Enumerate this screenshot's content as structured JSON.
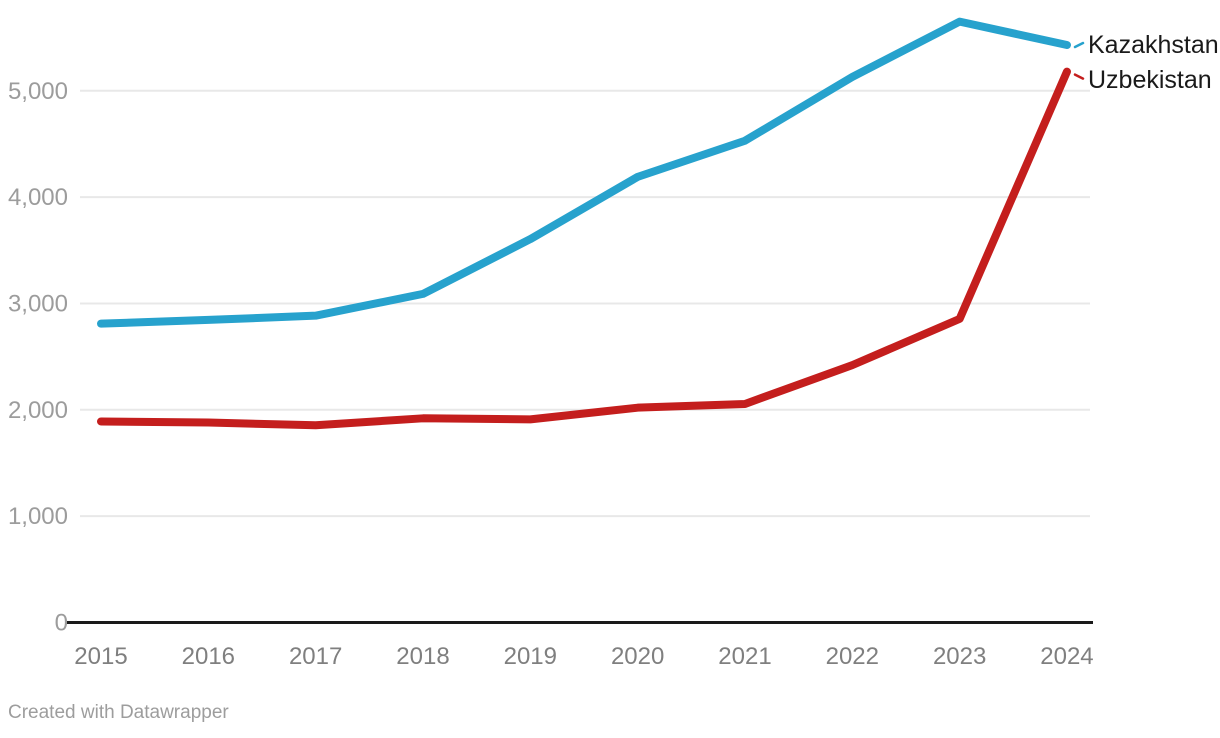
{
  "chart_data": {
    "type": "line",
    "x": [
      "2015",
      "2016",
      "2017",
      "2018",
      "2019",
      "2020",
      "2021",
      "2022",
      "2023",
      "2024"
    ],
    "series": [
      {
        "name": "Kazakhstan",
        "color": "#27a2cd",
        "values": [
          2810,
          2845,
          2885,
          3090,
          3605,
          4190,
          4530,
          5130,
          5650,
          5430
        ]
      },
      {
        "name": "Uzbekistan",
        "color": "#c41e1d",
        "values": [
          1890,
          1880,
          1855,
          1920,
          1910,
          2020,
          2055,
          2420,
          2855,
          5180
        ]
      }
    ],
    "title": "",
    "xlabel": "",
    "ylabel": "",
    "ylim": [
      0,
      5700
    ],
    "yticks": [
      0,
      1000,
      2000,
      3000,
      4000,
      5000
    ],
    "ytick_labels": [
      "0",
      "1,000",
      "2,000",
      "3,000",
      "4,000",
      "5,000"
    ],
    "grid": "horizontal",
    "legend_position": "direct-labels-right"
  },
  "legend": {
    "kazakhstan_label": "Kazakhstan",
    "uzbekistan_label": "Uzbekistan"
  },
  "footer": {
    "credit": "Created with Datawrapper"
  },
  "colors": {
    "series_blue": "#27a2cd",
    "series_red": "#c41e1d",
    "axis_line": "#1a1a1a",
    "gridline": "#e8e8e8",
    "ytick_text": "#9c9c9c",
    "xtick_text": "#7f7f7f",
    "label_text": "#1a1a1a",
    "credit_text": "#9d9d9d"
  }
}
